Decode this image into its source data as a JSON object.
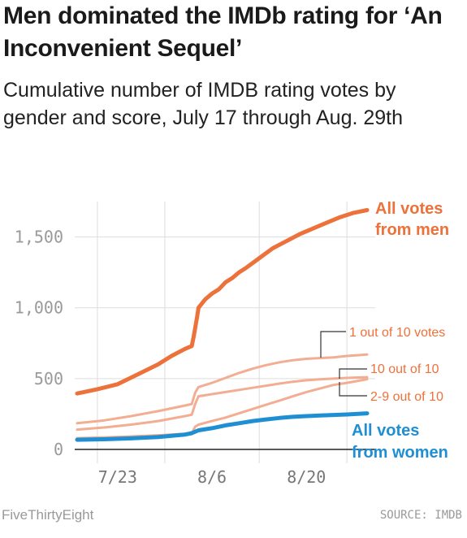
{
  "header": {
    "title": "Men dominated the IMDb rating for ‘An Inconvenient Sequel’",
    "subtitle": "Cumulative number of IMDB rating votes by gender and score, July 17 through Aug. 29th"
  },
  "footer": {
    "brand": "FiveThirtyEight",
    "source": "SOURCE: IMDB"
  },
  "colors": {
    "men": "#ed713a",
    "men_light": "#f2ad92",
    "women": "#1f8fd4",
    "grid": "#dddddd",
    "baseline": "#222222"
  },
  "chart_data": {
    "type": "line",
    "x_range": [
      0,
      43
    ],
    "x_note_start": "July 17",
    "ylim": [
      0,
      1750
    ],
    "y_ticks": [
      0,
      500,
      1000,
      1500
    ],
    "y_tick_labels": [
      "0",
      "500",
      "1,000",
      "1,500"
    ],
    "x_ticks": [
      6,
      20,
      34
    ],
    "x_tick_labels": [
      "7/23",
      "8/6",
      "8/20"
    ],
    "grid": true,
    "series": [
      {
        "name": "All votes from men",
        "label_line1": "All votes",
        "label_line2": "from men",
        "style": "men",
        "x": [
          0,
          3,
          6,
          9,
          12,
          14,
          16,
          17,
          17.3,
          17.8,
          18,
          19,
          20,
          21,
          22,
          23,
          24,
          25,
          27,
          29,
          31,
          33,
          35,
          37,
          39,
          41,
          43
        ],
        "values": [
          395,
          425,
          460,
          530,
          600,
          660,
          710,
          730,
          800,
          940,
          1000,
          1060,
          1100,
          1130,
          1180,
          1210,
          1250,
          1280,
          1350,
          1420,
          1470,
          1520,
          1560,
          1600,
          1640,
          1670,
          1690
        ]
      },
      {
        "name": "1 out of 10 votes",
        "label": "1 out of 10 votes",
        "style": "men_light",
        "x": [
          0,
          4,
          8,
          12,
          16,
          17,
          17.5,
          18,
          20,
          22,
          24,
          26,
          28,
          30,
          32,
          34,
          36,
          38,
          40,
          43
        ],
        "values": [
          185,
          205,
          235,
          270,
          310,
          320,
          400,
          440,
          470,
          505,
          540,
          570,
          595,
          615,
          630,
          640,
          645,
          650,
          660,
          670
        ]
      },
      {
        "name": "10 out of 10",
        "label": "10 out of 10",
        "style": "men_light",
        "x": [
          0,
          4,
          8,
          12,
          16,
          17,
          17.5,
          18,
          20,
          22,
          24,
          26,
          28,
          30,
          32,
          34,
          36,
          38,
          40,
          43
        ],
        "values": [
          140,
          155,
          175,
          200,
          235,
          245,
          320,
          375,
          390,
          405,
          420,
          435,
          450,
          465,
          478,
          488,
          495,
          500,
          505,
          510
        ]
      },
      {
        "name": "2-9 out of 10",
        "label": "2-9 out of 10",
        "style": "men_light",
        "x": [
          0,
          4,
          8,
          12,
          16,
          17,
          17.5,
          18,
          20,
          22,
          24,
          26,
          28,
          30,
          32,
          34,
          36,
          38,
          40,
          43
        ],
        "values": [
          80,
          85,
          92,
          100,
          110,
          115,
          160,
          175,
          200,
          225,
          255,
          285,
          315,
          345,
          375,
          405,
          430,
          455,
          470,
          495
        ]
      },
      {
        "name": "All votes from women",
        "label_line1": "All votes",
        "label_line2": "from women",
        "style": "women",
        "x": [
          0,
          4,
          8,
          12,
          16,
          17,
          18,
          20,
          22,
          24,
          26,
          28,
          30,
          32,
          34,
          36,
          38,
          40,
          43
        ],
        "values": [
          68,
          72,
          78,
          88,
          105,
          115,
          135,
          150,
          170,
          185,
          200,
          212,
          222,
          230,
          235,
          240,
          243,
          247,
          255
        ]
      }
    ]
  }
}
